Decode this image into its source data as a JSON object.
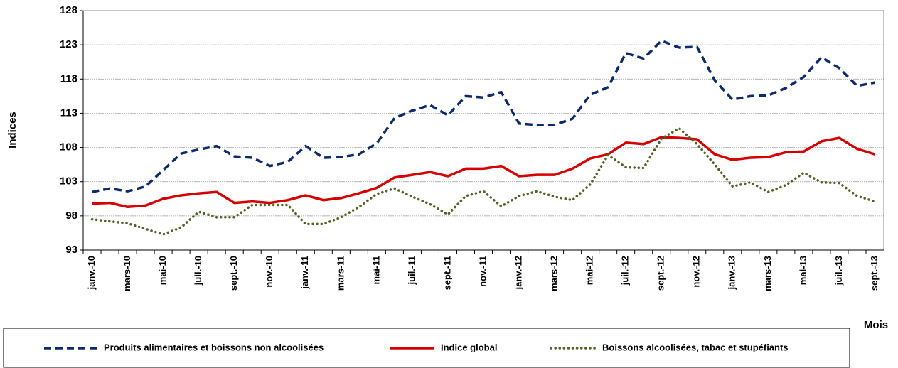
{
  "chart_data": {
    "type": "line",
    "ylabel": "Indices",
    "xlabel": "Mois",
    "categories": [
      "janv.-10",
      null,
      "mars-10",
      null,
      "mai-10",
      null,
      "juil.-10",
      null,
      "sept.-10",
      null,
      "nov.-10",
      null,
      "janv.-11",
      null,
      "mars-11",
      null,
      "mai-11",
      null,
      "juil.-11",
      null,
      "sept.-11",
      null,
      "nov.-11",
      null,
      "janv.-12",
      null,
      "mars-12",
      null,
      "mai-12",
      null,
      "juil.-12",
      null,
      "sept.-12",
      null,
      "nov.-12",
      null,
      "janv.-13",
      null,
      "mars-13",
      null,
      "mai-13",
      null,
      "juil.-13",
      null,
      "sept.-13"
    ],
    "ylim": [
      93,
      128
    ],
    "yticks": [
      93,
      98,
      103,
      108,
      113,
      118,
      123,
      128
    ],
    "grid": true,
    "series": [
      {
        "name": "Produits alimentaires et boissons non alcoolisées",
        "color": "#0d2a6b",
        "dash": "dashed",
        "values": [
          101.5,
          102.0,
          101.6,
          102.3,
          104.7,
          107.1,
          107.7,
          108.2,
          106.7,
          106.5,
          105.3,
          105.9,
          108.2,
          106.5,
          106.6,
          107.0,
          108.6,
          112.3,
          113.4,
          114.2,
          112.7,
          115.5,
          115.3,
          116.1,
          111.5,
          111.3,
          111.3,
          112.2,
          115.7,
          116.8,
          121.8,
          121.0,
          123.6,
          122.6,
          122.7,
          117.8,
          115.0,
          115.5,
          115.6,
          116.7,
          118.3,
          121.2,
          119.6,
          117.0,
          117.5
        ]
      },
      {
        "name": "Indice global",
        "color": "#d40000",
        "dash": "solid",
        "values": [
          99.8,
          99.9,
          99.3,
          99.5,
          100.5,
          101.0,
          101.3,
          101.5,
          99.9,
          100.1,
          99.9,
          100.3,
          101.0,
          100.3,
          100.6,
          101.3,
          102.1,
          103.6,
          104.0,
          104.4,
          103.8,
          104.9,
          104.9,
          105.3,
          103.8,
          104.0,
          104.0,
          104.9,
          106.4,
          107.0,
          108.7,
          108.5,
          109.5,
          109.4,
          109.2,
          107.0,
          106.2,
          106.5,
          106.6,
          107.3,
          107.4,
          108.9,
          109.4,
          107.8,
          107.0
        ]
      },
      {
        "name": "Boissons alcoolisées, tabac et stupéfiants",
        "color": "#4f6228",
        "dash": "dotted",
        "values": [
          97.5,
          97.2,
          96.9,
          96.1,
          95.3,
          96.3,
          98.6,
          97.8,
          97.8,
          99.6,
          99.6,
          99.6,
          96.8,
          96.8,
          97.8,
          99.3,
          101.2,
          102.0,
          100.8,
          99.7,
          98.2,
          100.9,
          101.6,
          99.4,
          100.9,
          101.6,
          100.8,
          100.3,
          102.6,
          106.9,
          105.1,
          105.0,
          109.3,
          110.8,
          108.5,
          105.5,
          102.3,
          102.9,
          101.5,
          102.5,
          104.3,
          102.9,
          102.8,
          100.9,
          100.1
        ]
      }
    ]
  }
}
